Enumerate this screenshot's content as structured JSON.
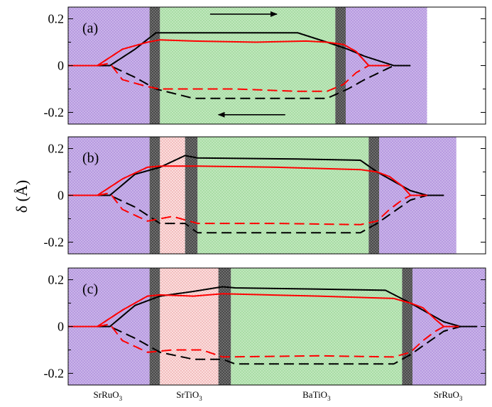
{
  "ylabel": "δ (Å)",
  "colors": {
    "srruo3": "#b79ae0",
    "srtio3": "#f6c0c0",
    "batio3": "#a9dda5",
    "interface": "#555555",
    "black_series": "#000000",
    "red_series": "#ff0000"
  },
  "chart_data": [
    {
      "type": "line",
      "panel_label": "(a)",
      "xlim": [
        0,
        100
      ],
      "ylim": [
        -0.25,
        0.25
      ],
      "yticks": [
        0.2,
        0,
        -0.2
      ],
      "ytick_labels": [
        "0.2",
        "0",
        "-0.2"
      ],
      "regions": [
        {
          "material": "SrRuO3",
          "x0": 0,
          "x1": 19.5
        },
        {
          "material": "interface",
          "x0": 19.5,
          "x1": 22
        },
        {
          "material": "BaTiO3",
          "x0": 22,
          "x1": 64
        },
        {
          "material": "interface",
          "x0": 64,
          "x1": 66.5
        },
        {
          "material": "SrRuO3",
          "x0": 66.5,
          "x1": 86
        },
        {
          "material": "vacuum",
          "x0": 86,
          "x1": 100
        }
      ],
      "arrows": [
        {
          "direction": "right",
          "y": 0.22,
          "x_from": 34,
          "x_to": 50
        },
        {
          "direction": "left",
          "y": -0.21,
          "x_from": 52,
          "x_to": 36
        }
      ],
      "series": [
        {
          "color": "black",
          "style": "solid",
          "x": [
            0,
            10,
            16,
            21,
            40,
            55,
            62,
            67,
            71,
            78,
            82
          ],
          "y": [
            0,
            0,
            0.07,
            0.14,
            0.14,
            0.14,
            0.1,
            0.07,
            0.04,
            0,
            0
          ]
        },
        {
          "color": "red",
          "style": "solid",
          "x": [
            0,
            7,
            13,
            19,
            22,
            30,
            45,
            57,
            62,
            66,
            69,
            72,
            74,
            77
          ],
          "y": [
            0,
            0,
            0.07,
            0.1,
            0.11,
            0.105,
            0.1,
            0.105,
            0.1,
            0.09,
            0.06,
            0,
            0,
            0
          ]
        },
        {
          "color": "black",
          "style": "dashed",
          "x": [
            0,
            10,
            16,
            21,
            30,
            45,
            62,
            67,
            71,
            78,
            82
          ],
          "y": [
            0,
            0,
            -0.05,
            -0.1,
            -0.14,
            -0.14,
            -0.14,
            -0.1,
            -0.06,
            0,
            0
          ]
        },
        {
          "color": "red",
          "style": "dashed",
          "x": [
            0,
            7,
            10,
            13,
            19,
            22,
            40,
            55,
            62,
            66,
            69,
            72,
            74,
            77
          ],
          "y": [
            0,
            0,
            0.01,
            -0.06,
            -0.09,
            -0.1,
            -0.1,
            -0.11,
            -0.11,
            -0.08,
            -0.03,
            0,
            0,
            0
          ]
        }
      ]
    },
    {
      "type": "line",
      "panel_label": "(b)",
      "xlim": [
        0,
        100
      ],
      "ylim": [
        -0.25,
        0.25
      ],
      "yticks": [
        0.2,
        0,
        -0.2
      ],
      "ytick_labels": [
        "0.2",
        "0",
        "-0.2"
      ],
      "regions": [
        {
          "material": "SrRuO3",
          "x0": 0,
          "x1": 19.5
        },
        {
          "material": "interface",
          "x0": 19.5,
          "x1": 22
        },
        {
          "material": "SrTiO3",
          "x0": 22,
          "x1": 28
        },
        {
          "material": "interface",
          "x0": 28,
          "x1": 31
        },
        {
          "material": "BaTiO3",
          "x0": 31,
          "x1": 72
        },
        {
          "material": "interface",
          "x0": 72,
          "x1": 74.5
        },
        {
          "material": "SrRuO3",
          "x0": 74.5,
          "x1": 93
        },
        {
          "material": "vacuum",
          "x0": 93,
          "x1": 100
        }
      ],
      "series": [
        {
          "color": "black",
          "style": "solid",
          "x": [
            0,
            10,
            16,
            22,
            28,
            31,
            55,
            70,
            74,
            78,
            82,
            86,
            90
          ],
          "y": [
            0,
            0,
            0.09,
            0.12,
            0.17,
            0.16,
            0.155,
            0.15,
            0.1,
            0.06,
            0.02,
            0,
            0
          ]
        },
        {
          "color": "red",
          "style": "solid",
          "x": [
            0,
            7,
            13,
            19,
            22,
            31,
            50,
            70,
            74,
            77,
            80,
            82,
            86
          ],
          "y": [
            0,
            0,
            0.07,
            0.12,
            0.125,
            0.125,
            0.12,
            0.11,
            0.1,
            0.08,
            0.04,
            0,
            0
          ]
        },
        {
          "color": "black",
          "style": "dashed",
          "x": [
            0,
            10,
            16,
            22,
            28,
            31,
            55,
            70,
            74,
            78,
            82,
            86,
            90
          ],
          "y": [
            0,
            0,
            -0.05,
            -0.12,
            -0.12,
            -0.16,
            -0.16,
            -0.16,
            -0.12,
            -0.07,
            -0.02,
            0,
            0
          ]
        },
        {
          "color": "red",
          "style": "dashed",
          "x": [
            0,
            7,
            10,
            13,
            19,
            25,
            31,
            50,
            70,
            74,
            77,
            80,
            82,
            86
          ],
          "y": [
            0,
            0,
            0.01,
            -0.06,
            -0.11,
            -0.09,
            -0.12,
            -0.12,
            -0.125,
            -0.11,
            -0.06,
            -0.02,
            0,
            0
          ]
        }
      ]
    },
    {
      "type": "line",
      "panel_label": "(c)",
      "xlim": [
        0,
        100
      ],
      "ylim": [
        -0.25,
        0.25
      ],
      "yticks": [
        0.2,
        0,
        -0.2
      ],
      "ytick_labels": [
        "0.2",
        "0",
        "-0.2"
      ],
      "regions": [
        {
          "material": "SrRuO3",
          "x0": 0,
          "x1": 19.5
        },
        {
          "material": "interface",
          "x0": 19.5,
          "x1": 22
        },
        {
          "material": "SrTiO3",
          "x0": 22,
          "x1": 36
        },
        {
          "material": "interface",
          "x0": 36,
          "x1": 39
        },
        {
          "material": "BaTiO3",
          "x0": 39,
          "x1": 80
        },
        {
          "material": "interface",
          "x0": 80,
          "x1": 82.5
        },
        {
          "material": "SrRuO3",
          "x0": 82.5,
          "x1": 100
        }
      ],
      "x_labels": [
        "SrRuO3",
        "SrTiO3",
        "BaTiO3",
        "SrRuO3"
      ],
      "x_label_positions": [
        9.5,
        29,
        59.5,
        91
      ],
      "series": [
        {
          "color": "black",
          "style": "solid",
          "x": [
            0,
            10,
            16,
            22,
            30,
            37,
            40,
            60,
            76,
            82,
            86,
            90,
            94,
            98
          ],
          "y": [
            0,
            0,
            0.09,
            0.13,
            0.15,
            0.17,
            0.165,
            0.16,
            0.155,
            0.1,
            0.06,
            0.02,
            0,
            0
          ]
        },
        {
          "color": "red",
          "style": "solid",
          "x": [
            0,
            7,
            13,
            19,
            22,
            30,
            37,
            60,
            78,
            82,
            85,
            88,
            90,
            94
          ],
          "y": [
            0,
            0,
            0.07,
            0.13,
            0.135,
            0.13,
            0.14,
            0.13,
            0.12,
            0.1,
            0.08,
            0.03,
            0,
            0
          ]
        },
        {
          "color": "black",
          "style": "dashed",
          "x": [
            0,
            10,
            16,
            22,
            30,
            37,
            40,
            60,
            78,
            82,
            86,
            90,
            94,
            98
          ],
          "y": [
            0,
            0,
            -0.05,
            -0.11,
            -0.14,
            -0.14,
            -0.16,
            -0.16,
            -0.16,
            -0.12,
            -0.07,
            -0.02,
            0,
            0
          ]
        },
        {
          "color": "red",
          "style": "dashed",
          "x": [
            0,
            7,
            10,
            13,
            19,
            25,
            32,
            37,
            60,
            78,
            82,
            85,
            88,
            90,
            94
          ],
          "y": [
            0,
            0,
            0.01,
            -0.06,
            -0.11,
            -0.1,
            -0.1,
            -0.13,
            -0.125,
            -0.13,
            -0.11,
            -0.06,
            -0.02,
            0,
            0
          ]
        }
      ]
    }
  ]
}
